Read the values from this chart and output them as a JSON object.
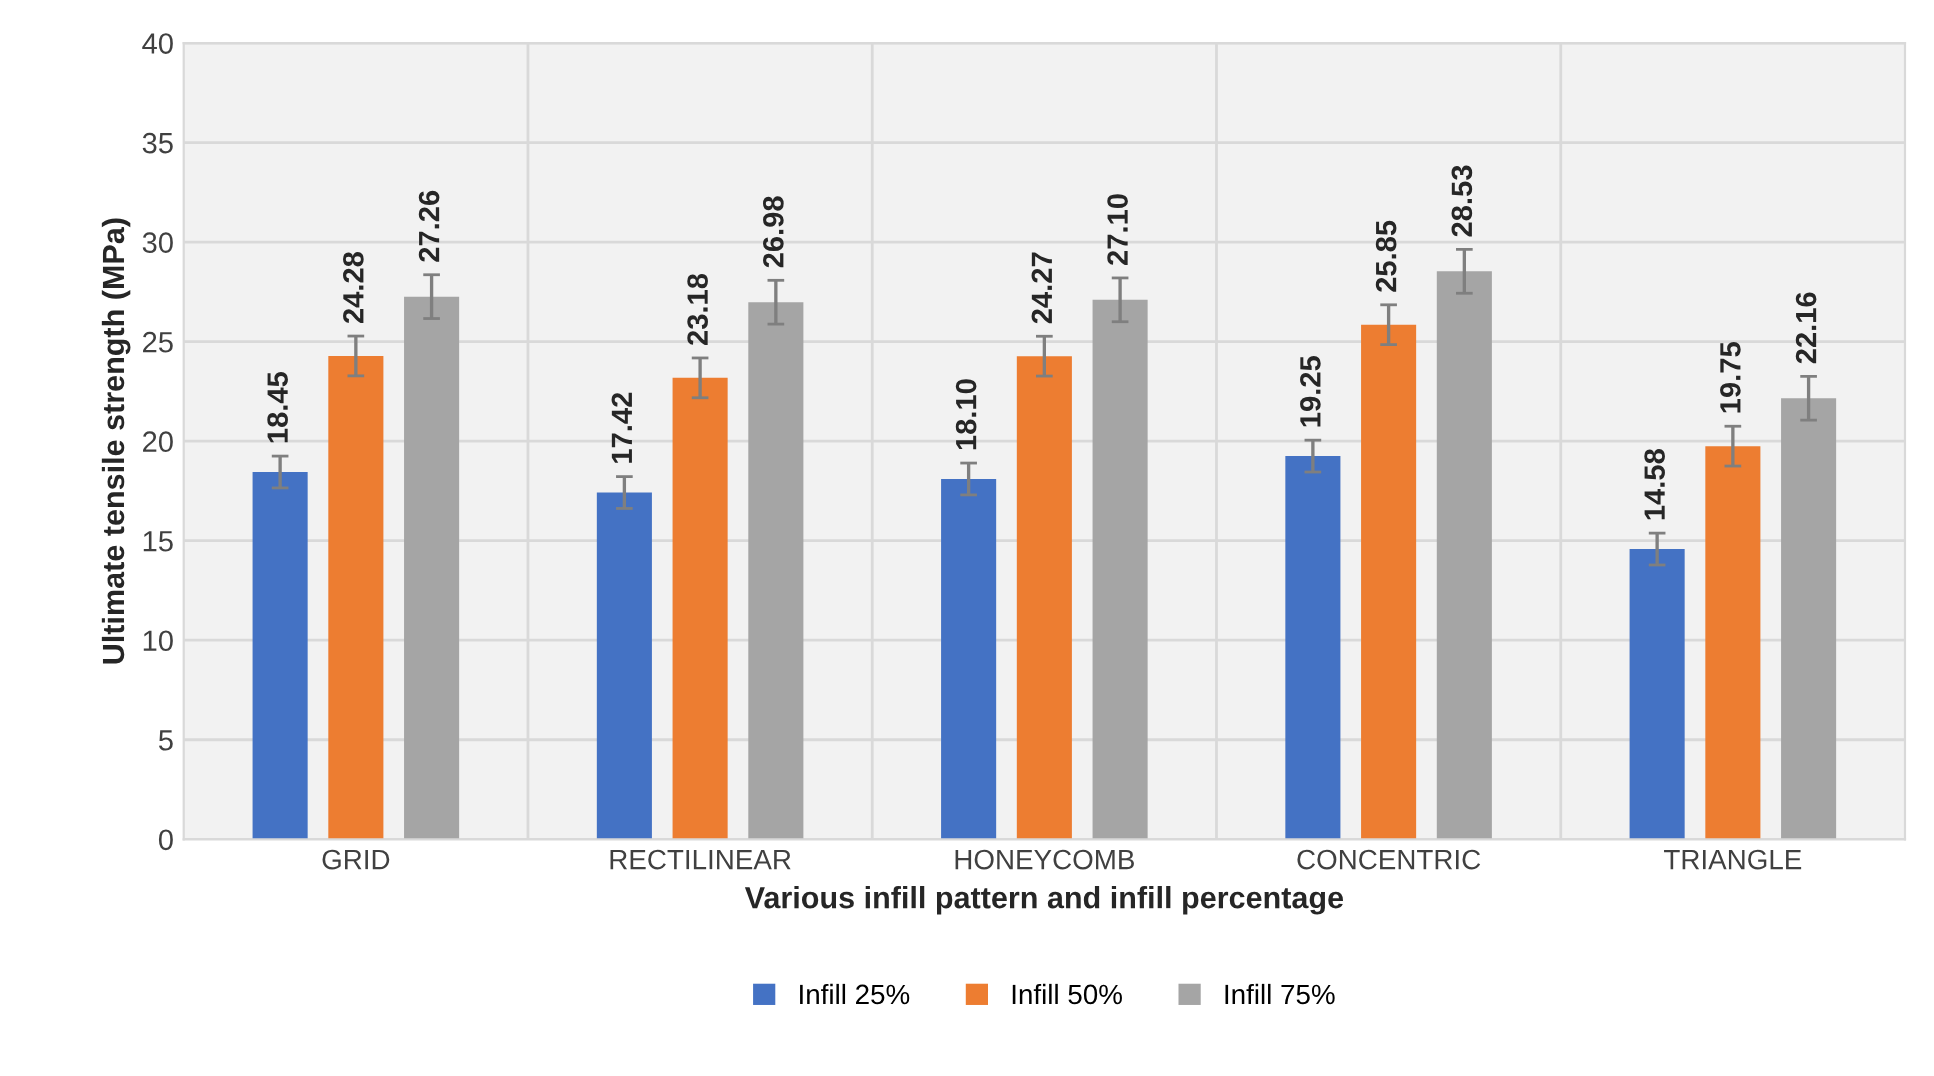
{
  "chart_data": {
    "type": "bar",
    "xlabel": "Various infill pattern and infill percentage",
    "ylabel": "Ultimate tensile strength (MPa)",
    "categories": [
      "GRID",
      "RECTILINEAR",
      "HONEYCOMB",
      "CONCENTRIC",
      "TRIANGLE"
    ],
    "series": [
      {
        "name": "Infill 25%",
        "color": "#4472c4",
        "values": [
          18.45,
          17.42,
          18.1,
          19.25,
          14.58
        ],
        "errors": [
          0.8,
          0.8,
          0.8,
          0.8,
          0.8
        ],
        "value_labels": [
          "18.45",
          "17.42",
          "18.10",
          "19.25",
          "14.58"
        ]
      },
      {
        "name": "Infill 50%",
        "color": "#ed7d31",
        "values": [
          24.28,
          23.18,
          24.27,
          25.85,
          19.75
        ],
        "errors": [
          1.0,
          1.0,
          1.0,
          1.0,
          1.0
        ],
        "value_labels": [
          "24.28",
          "23.18",
          "24.27",
          "25.85",
          "19.75"
        ]
      },
      {
        "name": "Infill 75%",
        "color": "#a5a5a5",
        "values": [
          27.26,
          26.98,
          27.1,
          28.53,
          22.16
        ],
        "errors": [
          1.1,
          1.1,
          1.1,
          1.1,
          1.1
        ],
        "value_labels": [
          "27.26",
          "26.98",
          "27.10",
          "28.53",
          "22.16"
        ]
      }
    ],
    "ylim": [
      0,
      40
    ],
    "yticks": [
      0,
      5,
      10,
      15,
      20,
      25,
      30,
      35,
      40
    ],
    "grid": true,
    "legend": "bottom"
  }
}
